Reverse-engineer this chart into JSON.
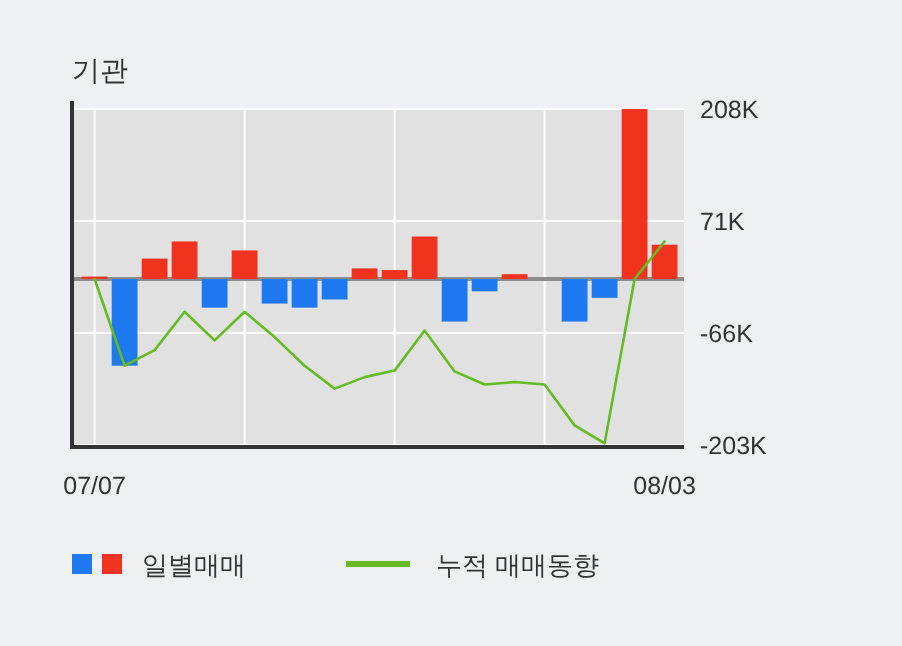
{
  "chart_data": {
    "type": "bar",
    "title": "기관",
    "categories": [
      "07/07",
      null,
      null,
      null,
      null,
      null,
      null,
      null,
      null,
      null,
      null,
      null,
      null,
      null,
      null,
      null,
      null,
      null,
      null,
      "08/03"
    ],
    "series": [
      {
        "name": "일별매매",
        "colors": [
          "#f0321e",
          "#1e78f0",
          "#f0321e",
          "#f0321e",
          "#1e78f0",
          "#f0321e",
          "#1e78f0",
          "#1e78f0",
          "#1e78f0",
          "#f0321e",
          "#f0321e",
          "#f0321e",
          "#1e78f0",
          "#1e78f0",
          "#f0321e",
          "#f0321e",
          "#1e78f0",
          "#1e78f0",
          "#f0321e",
          "#f0321e"
        ],
        "values": [
          3000,
          -106000,
          25000,
          46000,
          -35000,
          35000,
          -30000,
          -35000,
          -25000,
          13000,
          11000,
          52000,
          -52000,
          -15000,
          6000,
          0,
          -52000,
          -23000,
          208000,
          42000
        ]
      },
      {
        "type": "line",
        "name": "누적 매매동향",
        "color": "#66bb22",
        "values": [
          0,
          -106000,
          -87000,
          -40000,
          -75000,
          -40000,
          -71000,
          -106000,
          -134000,
          -120000,
          -112000,
          -63000,
          -113000,
          -129000,
          -126000,
          -129000,
          -179000,
          -201000,
          0,
          46000
        ]
      }
    ],
    "ylim": [
      -203000,
      208000
    ],
    "yticks": [
      {
        "value": 208000,
        "label": "208K"
      },
      {
        "value": 71000,
        "label": "71K"
      },
      {
        "value": -66000,
        "label": "-66K"
      },
      {
        "value": -203000,
        "label": "-203K"
      }
    ],
    "grid": true,
    "legend": "bottom"
  }
}
